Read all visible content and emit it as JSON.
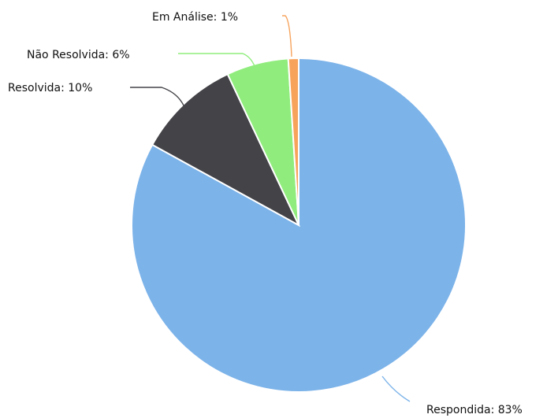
{
  "chart_data": {
    "type": "pie",
    "categories": [
      "Respondida",
      "Resolvida",
      "Não Resolvida",
      "Em Análise"
    ],
    "values": [
      83,
      10,
      6,
      1
    ],
    "colors": [
      "#7cb3e9",
      "#434348",
      "#90ed7d",
      "#f7a35c"
    ],
    "data_labels": [
      "Respondida: 83%",
      "Resolvida: 10%",
      "Não Resolvida: 6%",
      "Em Análise: 1%"
    ],
    "start_angle": "12 o'clock",
    "direction": "clockwise",
    "legend": "none"
  }
}
